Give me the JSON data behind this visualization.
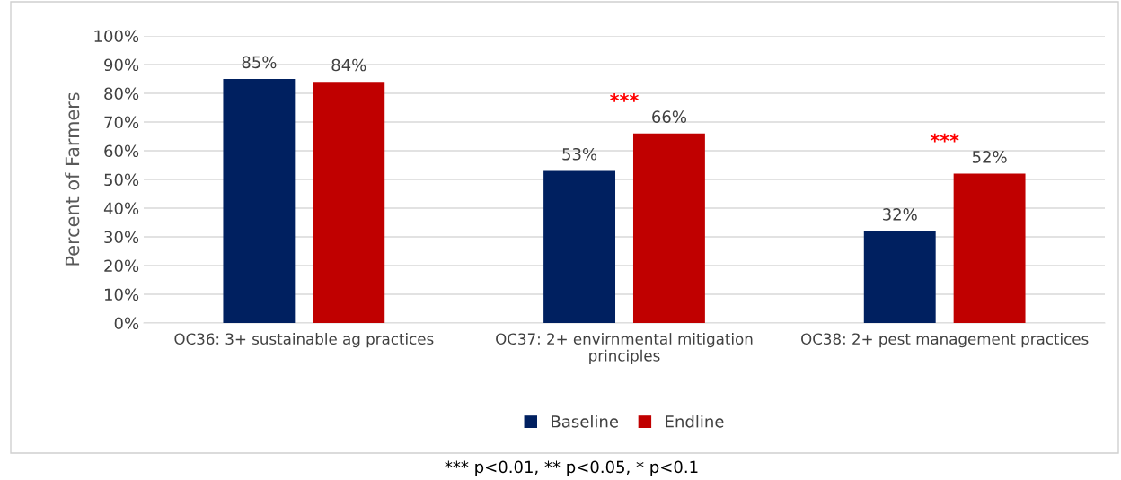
{
  "chart_data": {
    "type": "bar",
    "ylabel": "Percent of Farmers",
    "categories": [
      "OC36: 3+ sustainable ag practices",
      "OC37: 2+ envirnmental mitigation principles",
      "OC38: 2+ pest management practices"
    ],
    "series": [
      {
        "name": "Baseline",
        "color": "#002060",
        "values": [
          85,
          53,
          32
        ],
        "value_labels": [
          "85%",
          "53%",
          "32%"
        ]
      },
      {
        "name": "Endline",
        "color": "#c00000",
        "values": [
          84,
          66,
          52
        ],
        "value_labels": [
          "84%",
          "66%",
          "52%"
        ]
      }
    ],
    "ylim": [
      0,
      100
    ],
    "yticks": [
      {
        "value": 0,
        "label": "0%"
      },
      {
        "value": 10,
        "label": "10%"
      },
      {
        "value": 20,
        "label": "20%"
      },
      {
        "value": 30,
        "label": "30%"
      },
      {
        "value": 40,
        "label": "40%"
      },
      {
        "value": 50,
        "label": "50%"
      },
      {
        "value": 60,
        "label": "60%"
      },
      {
        "value": 70,
        "label": "70%"
      },
      {
        "value": 80,
        "label": "80%"
      },
      {
        "value": 90,
        "label": "90%"
      },
      {
        "value": 100,
        "label": "100%"
      }
    ],
    "grid": "y",
    "legend": "bottom",
    "annotations": [
      "***",
      "***",
      "*** p<0.01, ** p<0.05, * p<0.1"
    ]
  }
}
